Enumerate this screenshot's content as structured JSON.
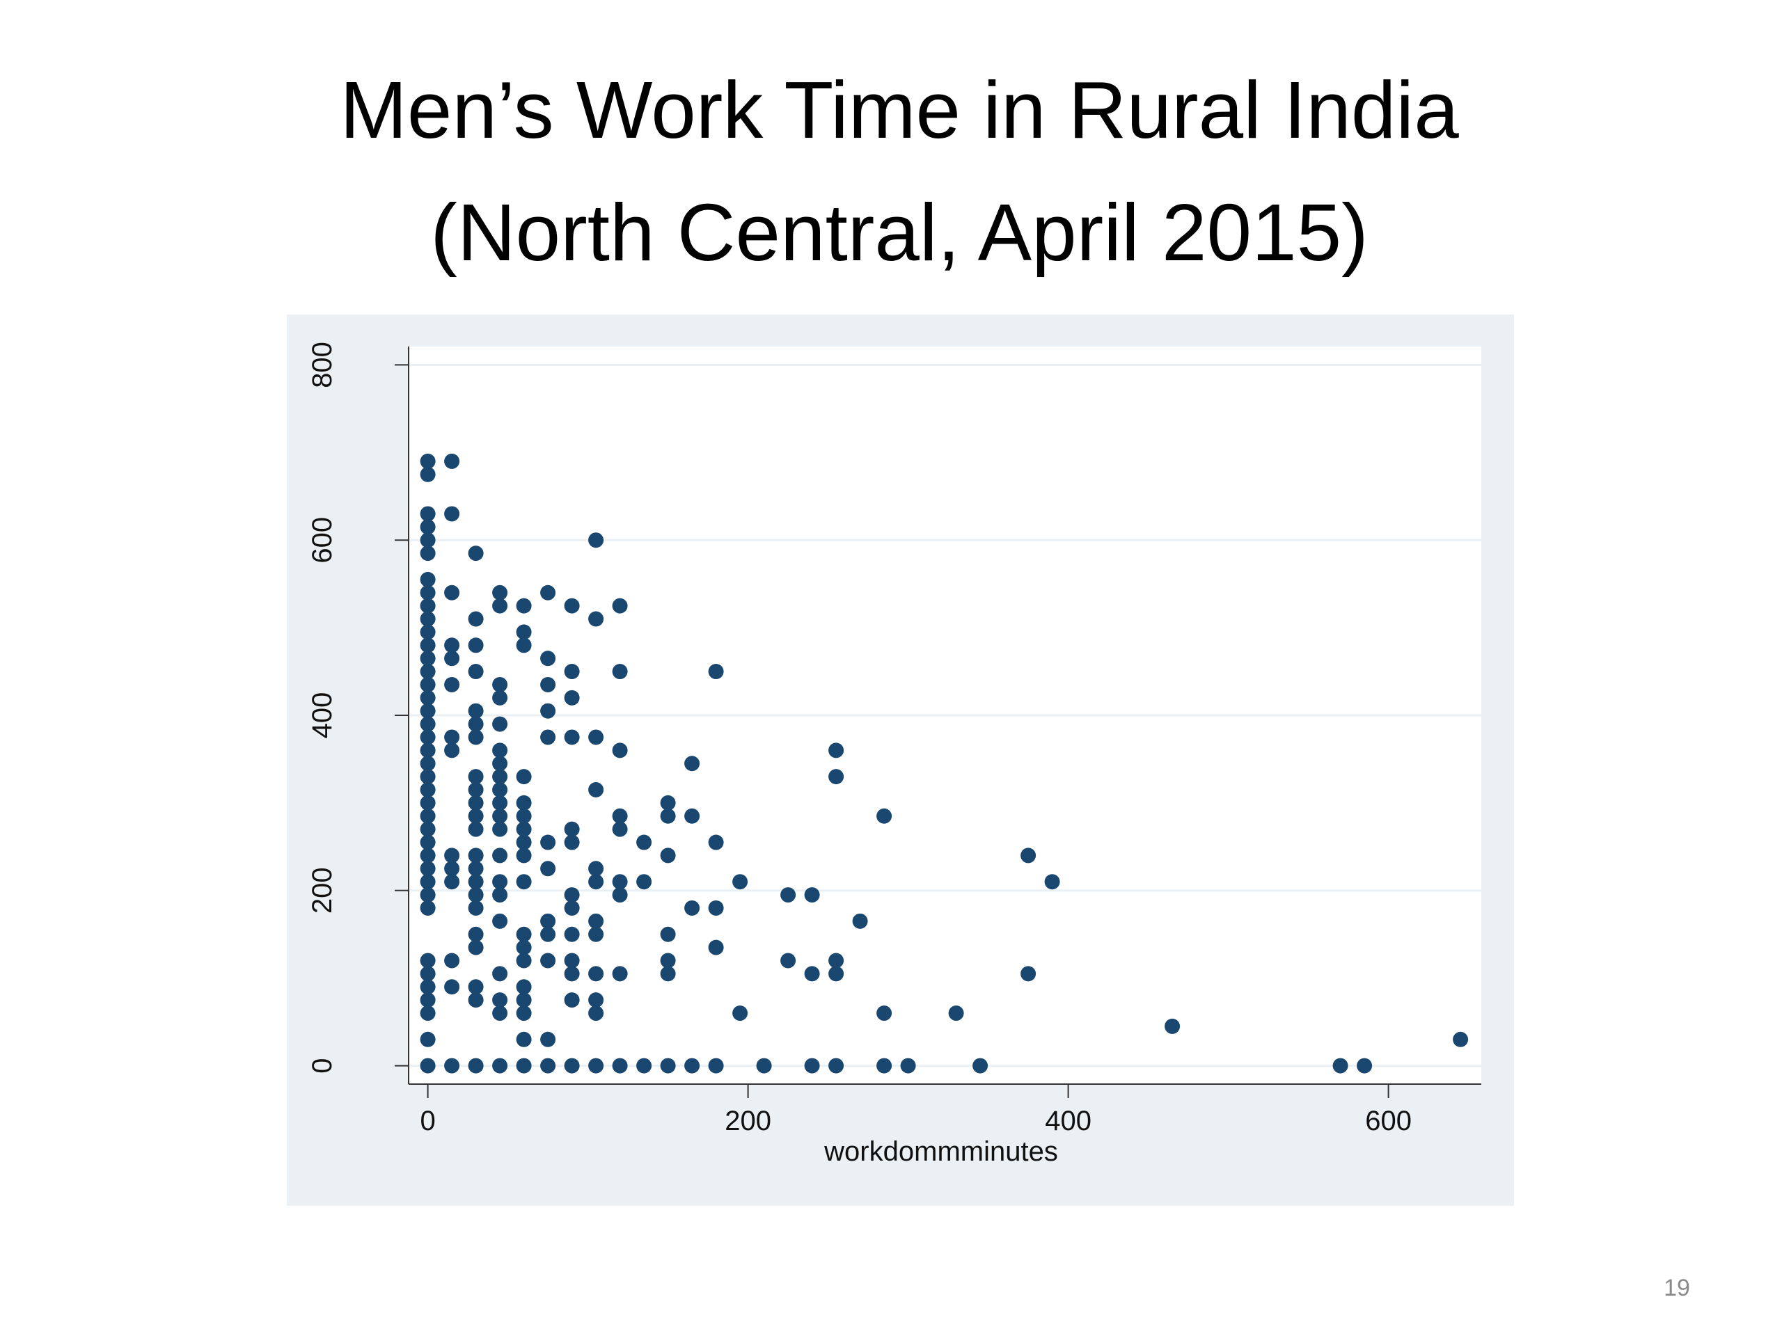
{
  "chart_data": {
    "type": "scatter",
    "title": "Men’s Work Time in Rural India",
    "subtitle": "(North Central, April 2015)",
    "x_label": "workdommminutes",
    "color": "#1a476f",
    "grid": true,
    "xlim": [
      -12,
      658
    ],
    "ylim": [
      -21,
      821
    ],
    "xticks": [
      0,
      200,
      400,
      600
    ],
    "yticks": [
      0,
      200,
      400,
      600,
      800
    ],
    "x": [
      0,
      0,
      0,
      0,
      0,
      0,
      0,
      0,
      0,
      0,
      0,
      0,
      0,
      0,
      0,
      0,
      0,
      0,
      0,
      0,
      0,
      0,
      0,
      0,
      0,
      0,
      0,
      0,
      0,
      0,
      0,
      0,
      0,
      0,
      0,
      0,
      0,
      0,
      0,
      15,
      15,
      15,
      15,
      15,
      15,
      15,
      15,
      15,
      15,
      15,
      15,
      15,
      15,
      30,
      30,
      30,
      30,
      30,
      30,
      30,
      30,
      30,
      30,
      30,
      30,
      30,
      30,
      30,
      30,
      30,
      30,
      30,
      30,
      30,
      30,
      45,
      45,
      45,
      45,
      45,
      45,
      45,
      45,
      45,
      45,
      45,
      45,
      45,
      45,
      45,
      45,
      45,
      45,
      45,
      45,
      60,
      60,
      60,
      60,
      60,
      60,
      60,
      60,
      60,
      60,
      60,
      60,
      60,
      60,
      60,
      60,
      60,
      60,
      75,
      75,
      75,
      75,
      75,
      75,
      75,
      75,
      75,
      75,
      75,
      75,
      90,
      90,
      90,
      90,
      90,
      90,
      90,
      90,
      90,
      90,
      90,
      90,
      90,
      105,
      105,
      105,
      105,
      105,
      105,
      105,
      105,
      105,
      105,
      105,
      105,
      120,
      120,
      120,
      120,
      120,
      120,
      120,
      120,
      120,
      135,
      135,
      135,
      150,
      150,
      150,
      150,
      150,
      150,
      150,
      165,
      165,
      165,
      165,
      180,
      180,
      180,
      180,
      180,
      195,
      195,
      210,
      225,
      225,
      240,
      240,
      240,
      255,
      255,
      255,
      255,
      255,
      270,
      285,
      285,
      285,
      300,
      330,
      345,
      375,
      375,
      390,
      465,
      570,
      585,
      645
    ],
    "values": [
      0,
      30,
      60,
      75,
      90,
      105,
      120,
      180,
      195,
      210,
      225,
      240,
      255,
      270,
      285,
      300,
      315,
      330,
      345,
      360,
      375,
      390,
      405,
      420,
      435,
      450,
      465,
      480,
      495,
      510,
      525,
      540,
      555,
      585,
      600,
      615,
      630,
      675,
      690,
      0,
      90,
      120,
      210,
      225,
      240,
      360,
      375,
      435,
      465,
      480,
      540,
      630,
      690,
      0,
      75,
      90,
      135,
      150,
      180,
      195,
      210,
      225,
      240,
      270,
      285,
      300,
      315,
      330,
      375,
      390,
      405,
      450,
      480,
      510,
      585,
      0,
      60,
      75,
      105,
      165,
      195,
      210,
      240,
      270,
      285,
      300,
      315,
      330,
      345,
      360,
      390,
      420,
      435,
      525,
      540,
      0,
      30,
      60,
      75,
      90,
      120,
      135,
      150,
      210,
      240,
      255,
      270,
      285,
      300,
      330,
      480,
      495,
      525,
      0,
      30,
      120,
      150,
      165,
      225,
      255,
      375,
      405,
      435,
      465,
      540,
      0,
      75,
      105,
      120,
      150,
      180,
      195,
      255,
      270,
      375,
      420,
      450,
      525,
      0,
      60,
      75,
      105,
      150,
      165,
      210,
      225,
      315,
      375,
      510,
      600,
      0,
      105,
      195,
      210,
      270,
      285,
      360,
      450,
      525,
      0,
      210,
      255,
      0,
      105,
      120,
      150,
      240,
      285,
      300,
      0,
      180,
      285,
      345,
      0,
      135,
      180,
      255,
      450,
      60,
      210,
      0,
      120,
      195,
      0,
      105,
      195,
      0,
      105,
      120,
      330,
      360,
      165,
      0,
      60,
      285,
      0,
      60,
      0,
      105,
      240,
      210,
      45,
      0,
      0,
      30
    ]
  },
  "page_number": "19"
}
